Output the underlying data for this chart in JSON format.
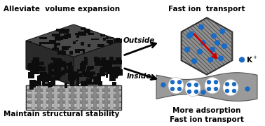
{
  "bg_color": "#ffffff",
  "text_alleviate": "Alleviate  volume expansion",
  "text_maintain": "Maintain structural stability",
  "text_fast_ion_top": "Fast ion  transport",
  "text_outside": "Outside",
  "text_inside": "Inside",
  "text_more_adsorption": "More adsorption\nFast ion transport",
  "arrow_color": "#000000",
  "red_arrow_color": "#cc0000",
  "dot_color": "#1a6bc4",
  "hex_fill": "#888888",
  "sheet_fill": "#909090",
  "pore_fill": "#ffffff",
  "block_top": "#555555",
  "block_left": "#333333",
  "block_right": "#3d3d3d",
  "block_dark": "#111111",
  "layer_light": "#c0c0c0",
  "layer_dark": "#888888"
}
